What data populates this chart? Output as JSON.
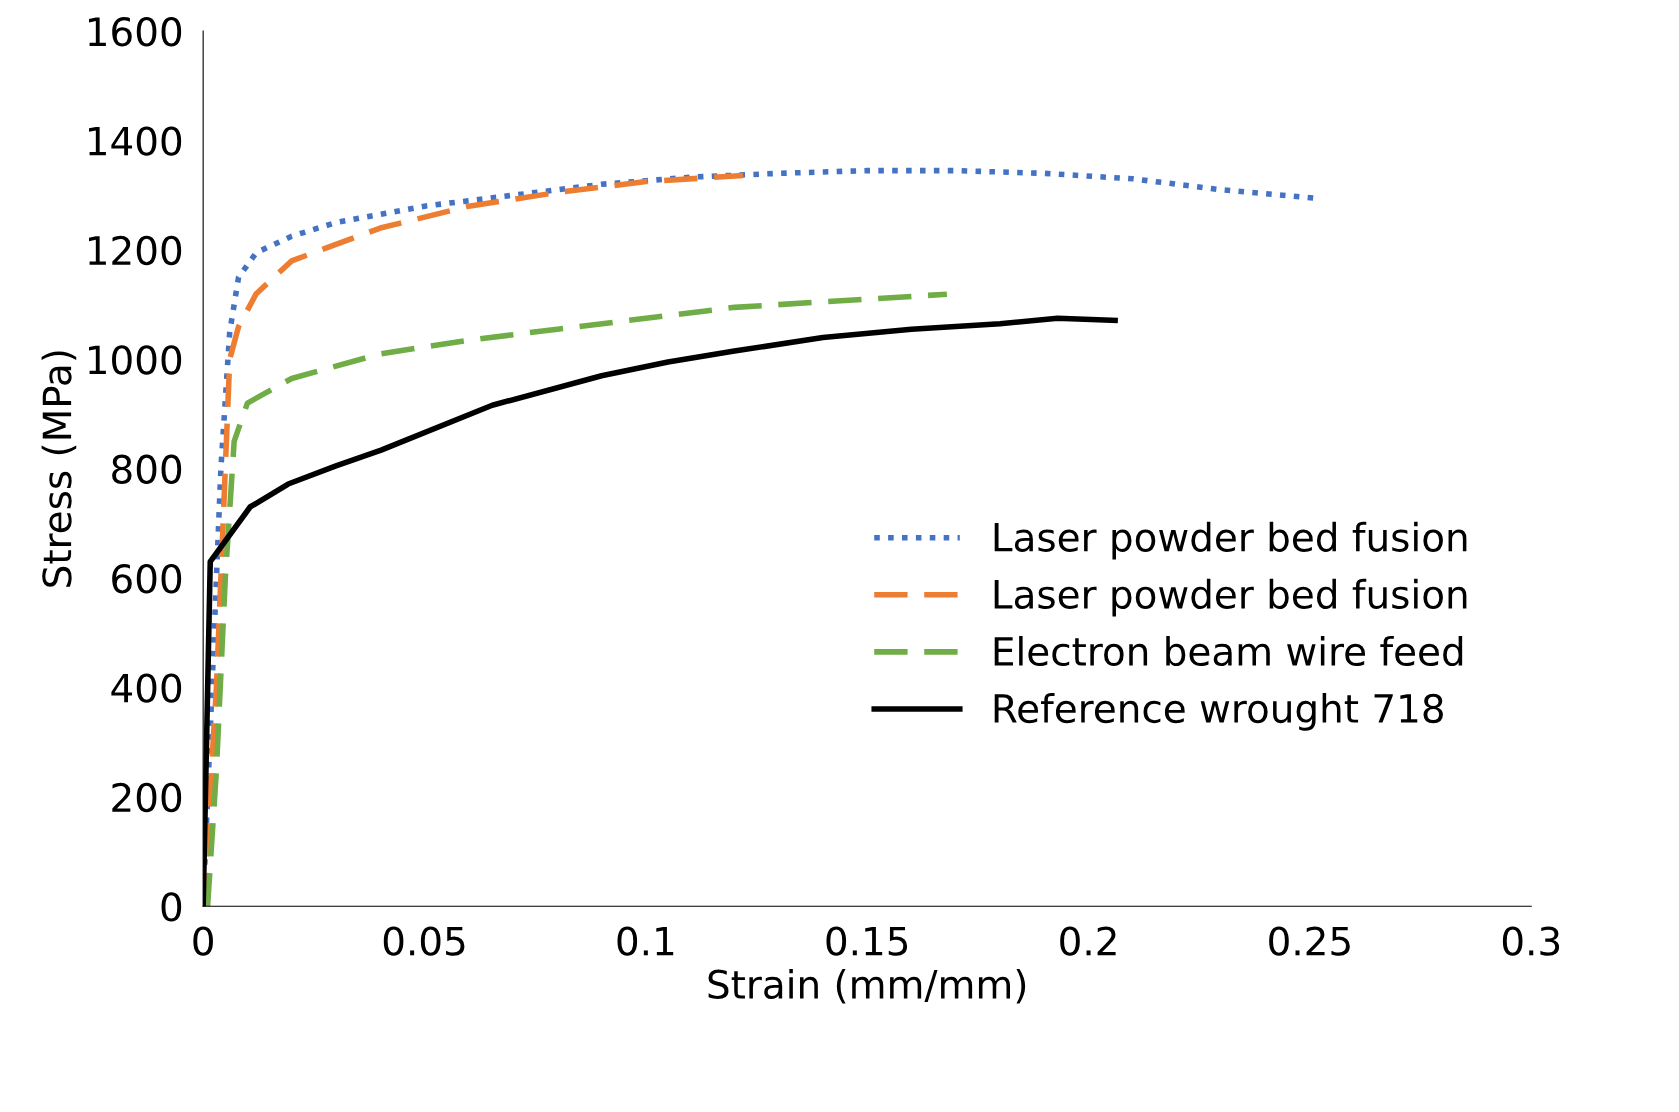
{
  "chart_data": {
    "type": "line",
    "xlabel": "Strain (mm/mm)",
    "ylabel": "Stress (MPa)",
    "xlim": [
      0,
      0.3
    ],
    "xticks": [
      0,
      0.05,
      0.1,
      0.15,
      0.2,
      0.25,
      0.3
    ],
    "ylim": [
      0,
      1600
    ],
    "yticks": [
      0,
      200,
      400,
      600,
      800,
      1000,
      1200,
      1400,
      1600
    ],
    "grid": false,
    "legend": "right",
    "marker": "none",
    "series": [
      {
        "name": "Laser powder bed fusion",
        "color": "#4472c4",
        "line_style": "dotted",
        "x": [
          0,
          0.002,
          0.004,
          0.006,
          0.008,
          0.012,
          0.02,
          0.03,
          0.04,
          0.05,
          0.07,
          0.09,
          0.11,
          0.13,
          0.15,
          0.17,
          0.19,
          0.21,
          0.23,
          0.252
        ],
        "values": [
          0,
          400,
          800,
          1050,
          1150,
          1195,
          1225,
          1250,
          1265,
          1280,
          1300,
          1320,
          1333,
          1340,
          1345,
          1345,
          1340,
          1330,
          1310,
          1294
        ]
      },
      {
        "name": "Laser powder bed fusion",
        "color": "#ed7d31",
        "line_style": "dashed",
        "x": [
          0,
          0.003,
          0.005,
          0.006,
          0.008,
          0.012,
          0.02,
          0.03,
          0.04,
          0.06,
          0.08,
          0.1,
          0.122
        ],
        "values": [
          0,
          400,
          800,
          1000,
          1060,
          1120,
          1180,
          1210,
          1240,
          1280,
          1305,
          1325,
          1336
        ]
      },
      {
        "name": "Electron beam wire feed",
        "color": "#70ad47",
        "line_style": "dashed",
        "x": [
          0.001,
          0.003,
          0.005,
          0.007,
          0.01,
          0.02,
          0.04,
          0.06,
          0.08,
          0.1,
          0.12,
          0.14,
          0.168
        ],
        "values": [
          0,
          250,
          600,
          850,
          920,
          965,
          1010,
          1035,
          1055,
          1075,
          1095,
          1105,
          1119
        ]
      },
      {
        "name": "Reference wrought 718",
        "color": "#000000",
        "line_style": "solid",
        "x": [
          0,
          0.0016,
          0.0106,
          0.0192,
          0.03,
          0.0402,
          0.0653,
          0.09,
          0.105,
          0.12,
          0.14,
          0.16,
          0.18,
          0.193,
          0.206
        ],
        "values": [
          0,
          630,
          730,
          772,
          805,
          834,
          916,
          970,
          995,
          1015,
          1040,
          1055,
          1065,
          1075,
          1071
        ]
      }
    ]
  }
}
